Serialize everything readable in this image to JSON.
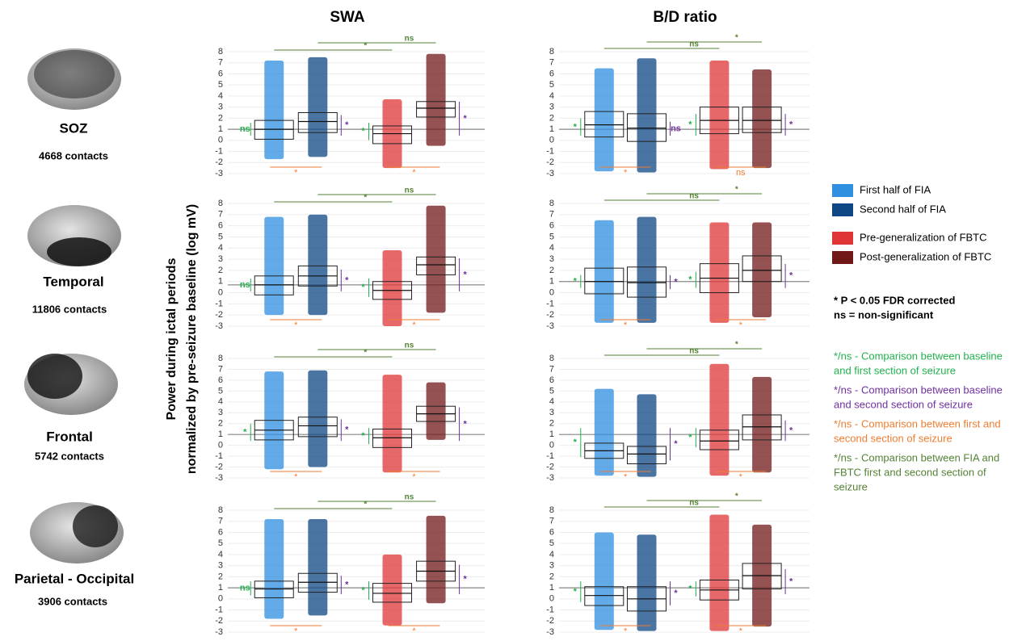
{
  "columns": [
    "SWA",
    "B/D ratio"
  ],
  "y_label": [
    "Power during ictal periods",
    "normalized by pre-seizure baseline (log mV)"
  ],
  "regions": [
    {
      "name": "SOZ",
      "contacts": "4668 contacts"
    },
    {
      "name": "Temporal",
      "contacts": "11806 contacts"
    },
    {
      "name": "Frontal",
      "contacts": "5742 contacts"
    },
    {
      "name": "Parietal - Occipital",
      "contacts": "3906 contacts"
    }
  ],
  "legend": [
    {
      "name": "First half of FIA",
      "color": "#2f8fe0"
    },
    {
      "name": "Second half of FIA",
      "color": "#0d4683"
    },
    {
      "name": "Pre-generalization of FBTC",
      "color": "#df3535"
    },
    {
      "name": "Post-generalization of FBTC",
      "color": "#701818"
    }
  ],
  "notes": [
    "* P < 0.05 FDR corrected",
    "ns = non-significant"
  ],
  "comparisons": [
    {
      "color": "#22b14c",
      "lines": [
        "*/ns - Comparison between baseline",
        "and first section of seizure"
      ]
    },
    {
      "color": "#7030a0",
      "lines": [
        "*/ns - Comparison between baseline",
        "and second section of seizure"
      ]
    },
    {
      "color": "#ed7d31",
      "lines": [
        "*/ns - Comparison between first and",
        "second section of seizure"
      ]
    },
    {
      "color": "#548235",
      "lines": [
        "*/ns - Comparison between FIA and",
        "FBTC first and second section of",
        "seizure"
      ]
    }
  ],
  "chart_data": [
    {
      "type": "box",
      "ylim": [
        -3,
        8
      ],
      "yticks": [
        -3,
        -2,
        -1,
        0,
        1,
        2,
        3,
        4,
        5,
        6,
        7,
        8
      ],
      "refline": 1,
      "boxes": [
        {
          "low": -1.7,
          "q1": 0.1,
          "median": 1.0,
          "q3": 1.8,
          "high": 7.2
        },
        {
          "low": -1.5,
          "q1": 0.7,
          "median": 1.7,
          "q3": 2.5,
          "high": 7.5
        },
        {
          "low": -2.5,
          "q1": -0.3,
          "median": 0.6,
          "q3": 1.3,
          "high": 3.7
        },
        {
          "low": -0.5,
          "q1": 2.1,
          "median": 2.9,
          "q3": 3.5,
          "high": 7.8
        }
      ],
      "annotations": [
        "ns",
        "*",
        "*",
        "*",
        "*",
        "*",
        "*",
        "ns"
      ]
    },
    {
      "type": "box",
      "ylim": [
        -3,
        8
      ],
      "yticks": [
        -3,
        -2,
        -1,
        0,
        1,
        2,
        3,
        4,
        5,
        6,
        7,
        8
      ],
      "refline": 1,
      "boxes": [
        {
          "low": -2.8,
          "q1": 0.3,
          "median": 1.4,
          "q3": 2.6,
          "high": 6.5
        },
        {
          "low": -2.9,
          "q1": -0.1,
          "median": 1.1,
          "q3": 2.4,
          "high": 7.4
        },
        {
          "low": -2.6,
          "q1": 0.6,
          "median": 1.8,
          "q3": 3.0,
          "high": 7.2
        },
        {
          "low": -2.5,
          "q1": 0.7,
          "median": 1.8,
          "q3": 3.0,
          "high": 6.4
        }
      ],
      "annotations": [
        "*",
        "ns",
        "*",
        "*",
        "*",
        "ns",
        "ns",
        "*"
      ]
    },
    {
      "type": "box",
      "ylim": [
        -3,
        8
      ],
      "yticks": [
        -3,
        -2,
        -1,
        0,
        1,
        2,
        3,
        4,
        5,
        6,
        7,
        8
      ],
      "refline": 0.7,
      "boxes": [
        {
          "low": -2.0,
          "q1": -0.2,
          "median": 0.7,
          "q3": 1.5,
          "high": 6.8
        },
        {
          "low": -2.0,
          "q1": 0.6,
          "median": 1.5,
          "q3": 2.4,
          "high": 7.0
        },
        {
          "low": -3.0,
          "q1": -0.6,
          "median": 0.2,
          "q3": 1.0,
          "high": 3.8
        },
        {
          "low": -1.8,
          "q1": 1.6,
          "median": 2.5,
          "q3": 3.2,
          "high": 7.8
        }
      ],
      "annotations": [
        "ns",
        "*",
        "*",
        "*",
        "*",
        "*",
        "*",
        "ns"
      ]
    },
    {
      "type": "box",
      "ylim": [
        -3,
        8
      ],
      "yticks": [
        -3,
        -2,
        -1,
        0,
        1,
        2,
        3,
        4,
        5,
        6,
        7,
        8
      ],
      "refline": 1,
      "boxes": [
        {
          "low": -2.7,
          "q1": -0.1,
          "median": 1.0,
          "q3": 2.2,
          "high": 6.5
        },
        {
          "low": -2.7,
          "q1": -0.4,
          "median": 0.9,
          "q3": 2.3,
          "high": 6.8
        },
        {
          "low": -2.7,
          "q1": 0.0,
          "median": 1.3,
          "q3": 2.6,
          "high": 6.3
        },
        {
          "low": -2.2,
          "q1": 1.0,
          "median": 2.0,
          "q3": 3.3,
          "high": 6.3
        }
      ],
      "annotations": [
        "*",
        "*",
        "*",
        "*",
        "*",
        "*",
        "ns",
        "*"
      ]
    },
    {
      "type": "box",
      "ylim": [
        -3,
        8
      ],
      "yticks": [
        -3,
        -2,
        -1,
        0,
        1,
        2,
        3,
        4,
        5,
        6,
        7,
        8
      ],
      "refline": 1,
      "boxes": [
        {
          "low": -2.2,
          "q1": 0.5,
          "median": 1.4,
          "q3": 2.3,
          "high": 6.8
        },
        {
          "low": -2.0,
          "q1": 0.8,
          "median": 1.8,
          "q3": 2.6,
          "high": 6.9
        },
        {
          "low": -2.5,
          "q1": -0.2,
          "median": 0.7,
          "q3": 1.5,
          "high": 6.5
        },
        {
          "low": 0.5,
          "q1": 2.2,
          "median": 2.9,
          "q3": 3.6,
          "high": 5.8
        }
      ],
      "annotations": [
        "*",
        "*",
        "*",
        "*",
        "*",
        "*",
        "*",
        "ns"
      ]
    },
    {
      "type": "box",
      "ylim": [
        -3,
        8
      ],
      "yticks": [
        -3,
        -2,
        -1,
        0,
        1,
        2,
        3,
        4,
        5,
        6,
        7,
        8
      ],
      "refline": 1,
      "boxes": [
        {
          "low": -2.8,
          "q1": -1.2,
          "median": -0.5,
          "q3": 0.2,
          "high": 5.2
        },
        {
          "low": -2.9,
          "q1": -1.7,
          "median": -0.8,
          "q3": -0.1,
          "high": 4.7
        },
        {
          "low": -2.8,
          "q1": -0.4,
          "median": 0.4,
          "q3": 1.4,
          "high": 7.5
        },
        {
          "low": -2.5,
          "q1": 0.5,
          "median": 1.7,
          "q3": 2.8,
          "high": 6.3
        }
      ],
      "annotations": [
        "*",
        "*",
        "*",
        "*",
        "*",
        "*",
        "ns",
        "*"
      ]
    },
    {
      "type": "box",
      "ylim": [
        -3,
        8
      ],
      "yticks": [
        -3,
        -2,
        -1,
        0,
        1,
        2,
        3,
        4,
        5,
        6,
        7,
        8
      ],
      "refline": 1,
      "boxes": [
        {
          "low": -1.8,
          "q1": 0.1,
          "median": 0.9,
          "q3": 1.6,
          "high": 7.2
        },
        {
          "low": -1.5,
          "q1": 0.6,
          "median": 1.5,
          "q3": 2.3,
          "high": 7.2
        },
        {
          "low": -2.4,
          "q1": -0.3,
          "median": 0.5,
          "q3": 1.4,
          "high": 4.0
        },
        {
          "low": -0.4,
          "q1": 1.6,
          "median": 2.5,
          "q3": 3.4,
          "high": 7.5
        }
      ],
      "annotations": [
        "ns",
        "*",
        "*",
        "*",
        "*",
        "*",
        "*",
        "ns"
      ]
    },
    {
      "type": "box",
      "ylim": [
        -3,
        8
      ],
      "yticks": [
        -3,
        -2,
        -1,
        0,
        1,
        2,
        3,
        4,
        5,
        6,
        7,
        8
      ],
      "refline": 1,
      "boxes": [
        {
          "low": -2.8,
          "q1": -0.6,
          "median": 0.3,
          "q3": 1.1,
          "high": 6.0
        },
        {
          "low": -2.9,
          "q1": -1.1,
          "median": 0.0,
          "q3": 1.1,
          "high": 5.8
        },
        {
          "low": -2.9,
          "q1": -0.1,
          "median": 0.8,
          "q3": 1.7,
          "high": 7.6
        },
        {
          "low": -2.5,
          "q1": 0.9,
          "median": 2.1,
          "q3": 3.2,
          "high": 6.7
        }
      ],
      "annotations": [
        "*",
        "*",
        "*",
        "*",
        "*",
        "*",
        "ns",
        "*"
      ]
    }
  ]
}
